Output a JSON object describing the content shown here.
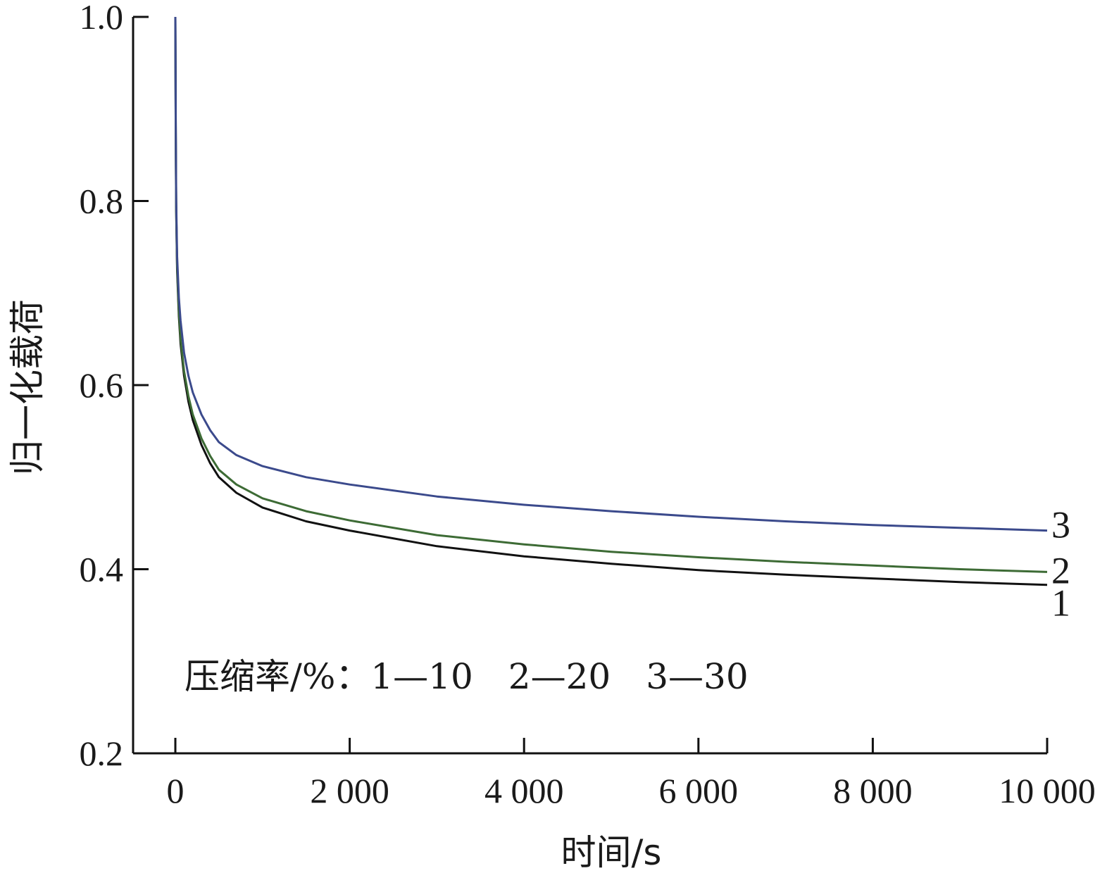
{
  "chart_data": {
    "type": "line",
    "title": "",
    "xlabel": "时间/s",
    "ylabel": "归一化载荷",
    "xlim": [
      -500,
      10000
    ],
    "ylim": [
      0.2,
      1.0
    ],
    "x_ticks": [
      0,
      2000,
      4000,
      6000,
      8000,
      10000
    ],
    "x_tick_labels": [
      "0",
      "2 000",
      "4 000",
      "6 000",
      "8 000",
      "10 000"
    ],
    "y_ticks": [
      0.2,
      0.4,
      0.6,
      0.8,
      1.0
    ],
    "y_tick_labels": [
      "0.2",
      "0.4",
      "0.6",
      "0.8",
      "1.0"
    ],
    "grid": false,
    "annotation": "压缩率/%：1—10　2—20　3—30",
    "series": [
      {
        "name": "1",
        "color": "#111111",
        "x": [
          0,
          5,
          10,
          20,
          40,
          60,
          100,
          150,
          200,
          300,
          400,
          500,
          700,
          1000,
          1500,
          2000,
          3000,
          4000,
          5000,
          6000,
          7000,
          8000,
          9000,
          10000
        ],
        "y": [
          1.0,
          0.87,
          0.79,
          0.725,
          0.675,
          0.645,
          0.61,
          0.582,
          0.562,
          0.535,
          0.515,
          0.5,
          0.483,
          0.467,
          0.452,
          0.442,
          0.425,
          0.414,
          0.406,
          0.399,
          0.394,
          0.39,
          0.386,
          0.383
        ]
      },
      {
        "name": "2",
        "color": "#3d6b35",
        "x": [
          0,
          5,
          10,
          20,
          40,
          60,
          100,
          150,
          200,
          300,
          400,
          500,
          700,
          1000,
          1500,
          2000,
          3000,
          4000,
          5000,
          6000,
          7000,
          8000,
          9000,
          10000
        ],
        "y": [
          1.0,
          0.87,
          0.79,
          0.73,
          0.68,
          0.65,
          0.615,
          0.588,
          0.568,
          0.542,
          0.523,
          0.508,
          0.492,
          0.477,
          0.463,
          0.453,
          0.437,
          0.427,
          0.419,
          0.413,
          0.408,
          0.404,
          0.4,
          0.397
        ]
      },
      {
        "name": "3",
        "color": "#3b4a8c",
        "x": [
          0,
          5,
          10,
          20,
          40,
          60,
          100,
          150,
          200,
          300,
          400,
          500,
          700,
          1000,
          1500,
          2000,
          3000,
          4000,
          5000,
          6000,
          7000,
          8000,
          9000,
          10000
        ],
        "y": [
          1.0,
          0.88,
          0.8,
          0.74,
          0.695,
          0.67,
          0.635,
          0.61,
          0.592,
          0.568,
          0.551,
          0.538,
          0.524,
          0.512,
          0.5,
          0.492,
          0.479,
          0.47,
          0.463,
          0.457,
          0.452,
          0.448,
          0.445,
          0.442
        ]
      }
    ]
  }
}
